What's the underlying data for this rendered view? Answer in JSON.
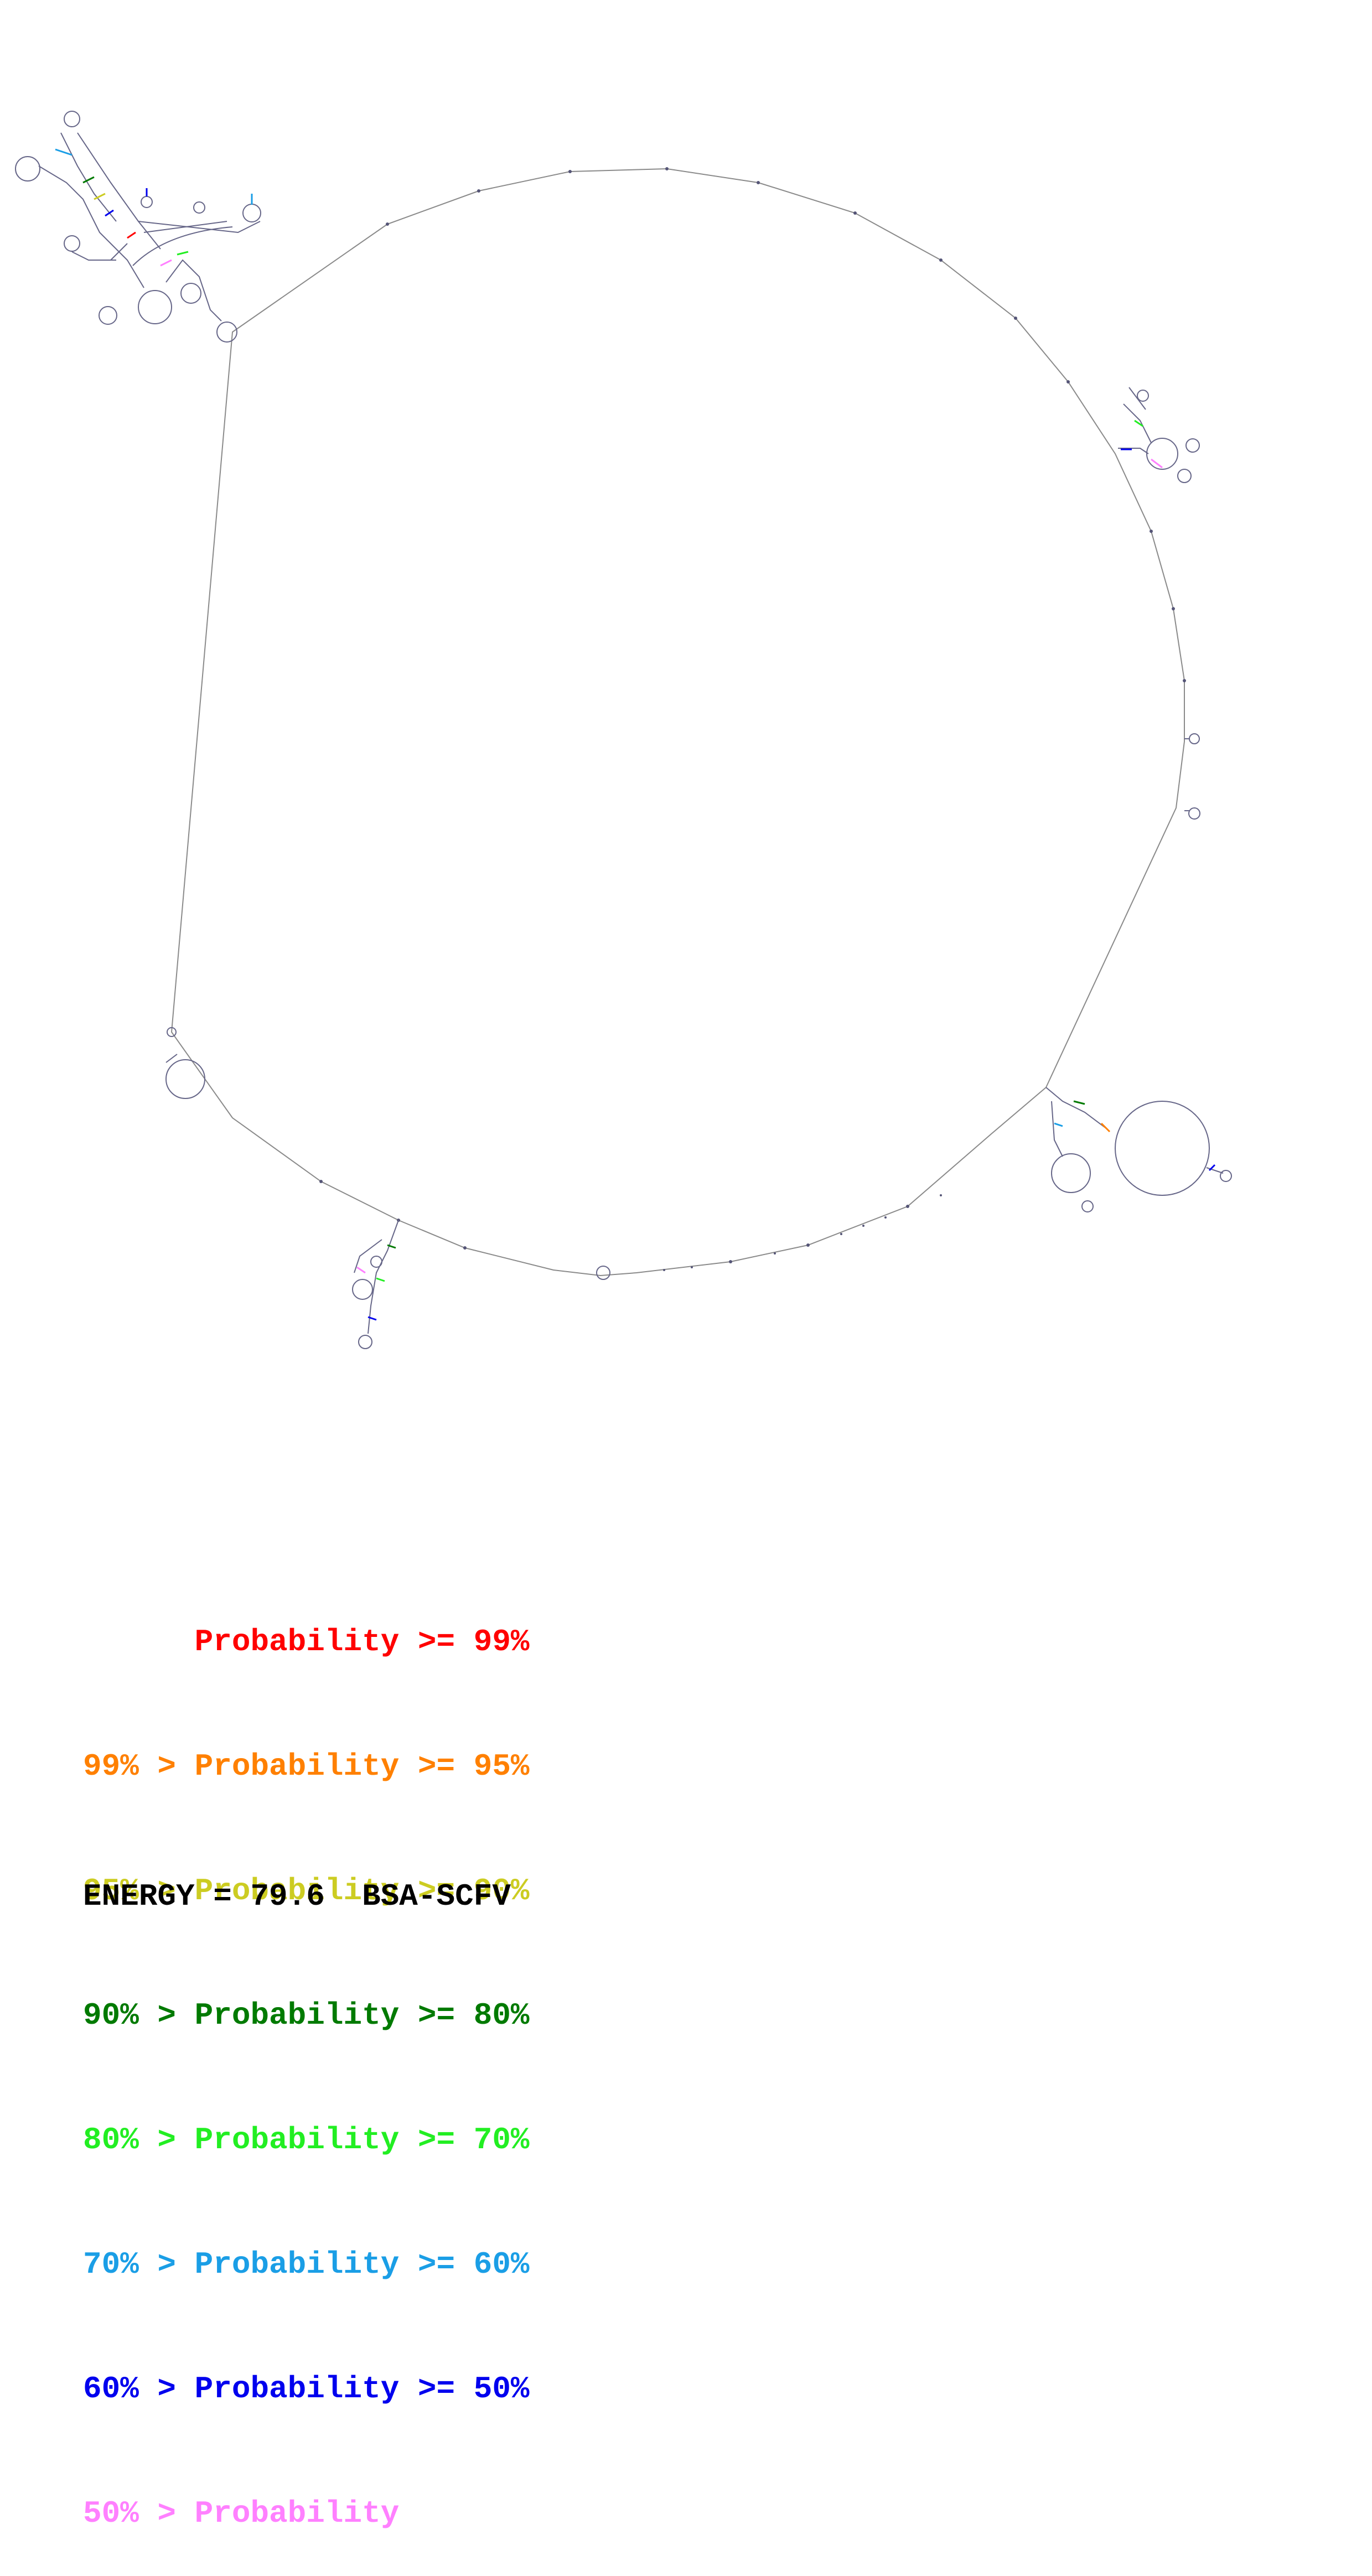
{
  "legend": [
    {
      "text": "      Probability >= 99%",
      "color": "#ff0000"
    },
    {
      "text": "99% > Probability >= 95%",
      "color": "#ff8000"
    },
    {
      "text": "95% > Probability >= 90%",
      "color": "#cccc22"
    },
    {
      "text": "90% > Probability >= 80%",
      "color": "#007a00"
    },
    {
      "text": "80% > Probability >= 70%",
      "color": "#22ee22"
    },
    {
      "text": "70% > Probability >= 60%",
      "color": "#1a9ee6"
    },
    {
      "text": "60% > Probability >= 50%",
      "color": "#0000ee"
    },
    {
      "text": "50% > Probability",
      "color": "#ff80ff"
    }
  ],
  "energy": {
    "label": "ENERGY =",
    "value": "79.6",
    "name": "BSA-SCFV"
  },
  "colors": {
    "backbone": "#8a8a8a",
    "base": "#555577"
  }
}
